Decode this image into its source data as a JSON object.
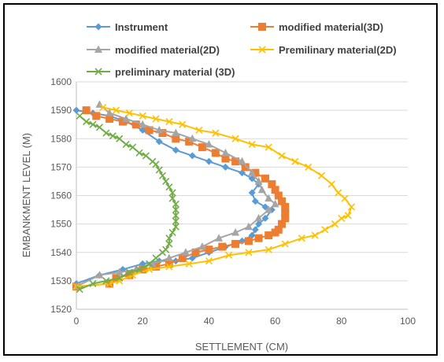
{
  "chart_data": {
    "type": "line",
    "title": "",
    "xlabel": "SETTLEMENT (CM)",
    "ylabel": "EMBANKMENT LEVEL (M)",
    "xlim": [
      0,
      100
    ],
    "ylim": [
      1520,
      1600
    ],
    "x_ticks": [
      "0",
      "20",
      "40",
      "60",
      "80",
      "100"
    ],
    "y_ticks": [
      "1520",
      "1530",
      "1540",
      "1550",
      "1560",
      "1570",
      "1580",
      "1590",
      "1600"
    ],
    "grid": "horizontal",
    "legend_position": "top",
    "series": [
      {
        "name": "Instrument",
        "color": "#5B9BD5",
        "marker": "diamond",
        "points": [
          [
            0,
            1590
          ],
          [
            5,
            1589
          ],
          [
            10,
            1588
          ],
          [
            15,
            1586
          ],
          [
            20,
            1583
          ],
          [
            25,
            1579
          ],
          [
            30,
            1576
          ],
          [
            35,
            1574
          ],
          [
            40,
            1572
          ],
          [
            45,
            1570
          ],
          [
            50,
            1568
          ],
          [
            53,
            1566
          ],
          [
            55,
            1564
          ],
          [
            53,
            1561
          ],
          [
            54,
            1558
          ],
          [
            57,
            1556
          ],
          [
            59,
            1555
          ],
          [
            57,
            1552
          ],
          [
            55,
            1550
          ],
          [
            54,
            1548
          ],
          [
            53,
            1546
          ],
          [
            50,
            1544
          ],
          [
            45,
            1542
          ],
          [
            40,
            1540
          ],
          [
            35,
            1538
          ],
          [
            30,
            1537
          ],
          [
            25,
            1537
          ],
          [
            20,
            1536
          ],
          [
            14,
            1534
          ],
          [
            7,
            1532
          ],
          [
            0,
            1529
          ]
        ]
      },
      {
        "name": "modified material(3D)",
        "color": "#ED7D31",
        "marker": "square",
        "points": [
          [
            3,
            1590
          ],
          [
            6,
            1588
          ],
          [
            10,
            1587
          ],
          [
            14,
            1586
          ],
          [
            18,
            1585
          ],
          [
            22,
            1583
          ],
          [
            26,
            1582
          ],
          [
            30,
            1580
          ],
          [
            34,
            1579
          ],
          [
            38,
            1577
          ],
          [
            42,
            1575
          ],
          [
            45,
            1573
          ],
          [
            48,
            1572
          ],
          [
            51,
            1570
          ],
          [
            54,
            1568
          ],
          [
            57,
            1566
          ],
          [
            59,
            1564
          ],
          [
            60,
            1562
          ],
          [
            61,
            1560
          ],
          [
            62,
            1558
          ],
          [
            63,
            1556
          ],
          [
            63,
            1554
          ],
          [
            63,
            1552
          ],
          [
            62,
            1550
          ],
          [
            61,
            1548
          ],
          [
            60,
            1547
          ],
          [
            58,
            1546
          ],
          [
            55,
            1545
          ],
          [
            52,
            1544
          ],
          [
            48,
            1543
          ],
          [
            44,
            1542
          ],
          [
            40,
            1541
          ],
          [
            36,
            1540
          ],
          [
            32,
            1538
          ],
          [
            28,
            1536
          ],
          [
            24,
            1535
          ],
          [
            20,
            1534
          ],
          [
            16,
            1532
          ],
          [
            12,
            1531
          ],
          [
            10,
            1529
          ],
          [
            0,
            1528
          ]
        ]
      },
      {
        "name": "modified material(2D)",
        "color": "#A5A5A5",
        "marker": "triangle",
        "points": [
          [
            7,
            1592
          ],
          [
            10,
            1589
          ],
          [
            15,
            1587
          ],
          [
            20,
            1585
          ],
          [
            25,
            1583
          ],
          [
            30,
            1582
          ],
          [
            35,
            1580
          ],
          [
            40,
            1578
          ],
          [
            45,
            1575
          ],
          [
            50,
            1572
          ],
          [
            53,
            1568
          ],
          [
            55,
            1565
          ],
          [
            56,
            1562
          ],
          [
            58,
            1559
          ],
          [
            60,
            1557
          ],
          [
            58,
            1555
          ],
          [
            55,
            1552
          ],
          [
            52,
            1549
          ],
          [
            48,
            1547
          ],
          [
            43,
            1545
          ],
          [
            38,
            1542
          ],
          [
            33,
            1540
          ],
          [
            28,
            1538
          ],
          [
            23,
            1536
          ],
          [
            18,
            1534
          ],
          [
            13,
            1533
          ],
          [
            7,
            1532
          ],
          [
            0,
            1528
          ]
        ]
      },
      {
        "name": "Premilinary material(2D)",
        "color": "#FFC000",
        "marker": "x",
        "points": [
          [
            8,
            1591
          ],
          [
            12,
            1590
          ],
          [
            16,
            1589
          ],
          [
            20,
            1588
          ],
          [
            24,
            1587
          ],
          [
            28,
            1586
          ],
          [
            32,
            1585
          ],
          [
            37,
            1583
          ],
          [
            42,
            1582
          ],
          [
            48,
            1580
          ],
          [
            53,
            1578
          ],
          [
            58,
            1577
          ],
          [
            62,
            1574
          ],
          [
            66,
            1572
          ],
          [
            70,
            1570
          ],
          [
            74,
            1567
          ],
          [
            77,
            1564
          ],
          [
            79,
            1561
          ],
          [
            81,
            1559
          ],
          [
            83,
            1556
          ],
          [
            82,
            1553
          ],
          [
            80,
            1552
          ],
          [
            78,
            1550
          ],
          [
            75,
            1548
          ],
          [
            72,
            1546
          ],
          [
            68,
            1545
          ],
          [
            63,
            1543
          ],
          [
            58,
            1541
          ],
          [
            52,
            1540
          ],
          [
            46,
            1539
          ],
          [
            40,
            1537
          ],
          [
            34,
            1536
          ],
          [
            28,
            1535
          ],
          [
            22,
            1534
          ],
          [
            17,
            1532
          ],
          [
            13,
            1530
          ],
          [
            10,
            1529
          ],
          [
            0,
            1528
          ]
        ]
      },
      {
        "name": "preliminary material (3D)",
        "color": "#70AD47",
        "marker": "x",
        "points": [
          [
            1,
            1588
          ],
          [
            3,
            1586
          ],
          [
            5,
            1585
          ],
          [
            7,
            1584
          ],
          [
            9,
            1582
          ],
          [
            11,
            1581
          ],
          [
            13,
            1580
          ],
          [
            15,
            1578
          ],
          [
            17,
            1577
          ],
          [
            19,
            1575
          ],
          [
            21,
            1574
          ],
          [
            23,
            1572
          ],
          [
            24,
            1571
          ],
          [
            25,
            1569
          ],
          [
            26,
            1567
          ],
          [
            27,
            1565
          ],
          [
            28,
            1563
          ],
          [
            29,
            1561
          ],
          [
            29,
            1559
          ],
          [
            30,
            1557
          ],
          [
            30,
            1555
          ],
          [
            30,
            1553
          ],
          [
            30,
            1551
          ],
          [
            30,
            1549
          ],
          [
            29,
            1547
          ],
          [
            28,
            1545
          ],
          [
            28,
            1543
          ],
          [
            27,
            1541
          ],
          [
            26,
            1540
          ],
          [
            24,
            1538
          ],
          [
            22,
            1536
          ],
          [
            19,
            1534
          ],
          [
            16,
            1533
          ],
          [
            13,
            1531
          ],
          [
            9,
            1530
          ],
          [
            5,
            1529
          ],
          [
            1,
            1527
          ]
        ]
      }
    ]
  }
}
